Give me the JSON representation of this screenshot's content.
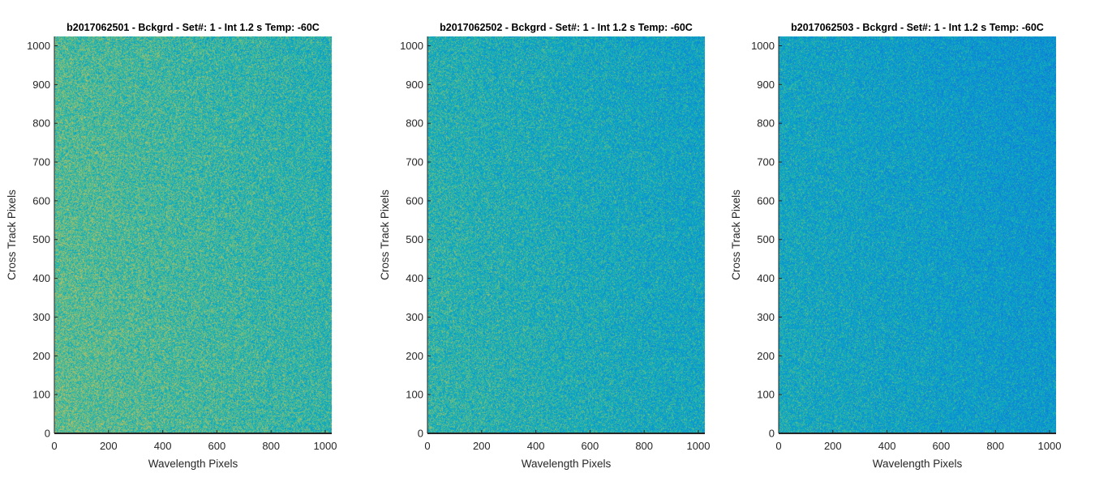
{
  "chart_data": [
    {
      "type": "heatmap",
      "title": "b2017062501 - Bckgrd - Set#: 1 - Int 1.2 s Temp: -60C",
      "xlabel": "Wavelength Pixels",
      "ylabel": "Cross Track Pixels",
      "xlim": [
        0,
        1024
      ],
      "ylim": [
        0,
        1024
      ],
      "xticks": [
        "0",
        "200",
        "400",
        "600",
        "800",
        "1000"
      ],
      "yticks": [
        "0",
        "100",
        "200",
        "300",
        "400",
        "500",
        "600",
        "700",
        "800",
        "900",
        "1000"
      ],
      "colormap": "parula",
      "seed": 11,
      "intensity": 0.6
    },
    {
      "type": "heatmap",
      "title": "b2017062502 - Bckgrd - Set#: 1 - Int 1.2 s Temp: -60C",
      "xlabel": "Wavelength Pixels",
      "ylabel": "Cross Track Pixels",
      "xlim": [
        0,
        1024
      ],
      "ylim": [
        0,
        1024
      ],
      "xticks": [
        "0",
        "200",
        "400",
        "600",
        "800",
        "1000"
      ],
      "yticks": [
        "0",
        "100",
        "200",
        "300",
        "400",
        "500",
        "600",
        "700",
        "800",
        "900",
        "1000"
      ],
      "colormap": "parula",
      "seed": 23,
      "intensity": 0.52
    },
    {
      "type": "heatmap",
      "title": "b2017062503 - Bckgrd - Set#: 1 - Int 1.2 s Temp: -60C",
      "xlabel": "Wavelength Pixels",
      "ylabel": "Cross Track Pixels",
      "xlim": [
        0,
        1024
      ],
      "ylim": [
        0,
        1024
      ],
      "xticks": [
        "0",
        "200",
        "400",
        "600",
        "800",
        "1000"
      ],
      "yticks": [
        "0",
        "100",
        "200",
        "300",
        "400",
        "500",
        "600",
        "700",
        "800",
        "900",
        "1000"
      ],
      "colormap": "parula",
      "seed": 37,
      "intensity": 0.46
    }
  ]
}
